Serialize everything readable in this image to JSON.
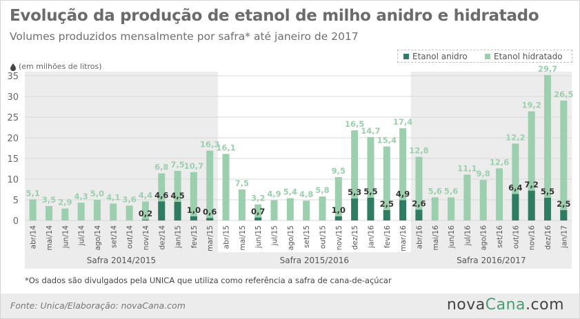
{
  "title": "Evolução da produção de etanol de milho anidro e hidratado",
  "subtitle": "Volumes produzidos mensalmente por safra* até janeiro de 2017",
  "unit_note": "(em milhões de litros)",
  "footnote": "*Os dados são divulgados pela UNICA que utiliza como referência a safra de cana-de-açúcar",
  "source": "Fonte:  Unica/Elaboração: novaCana.com",
  "brand": {
    "nova": "nova",
    "cana": "Cana",
    "com": ".com"
  },
  "icons": {
    "unit": "drop-icon"
  },
  "colors": {
    "anidro": "#2e7d62",
    "hidratado": "#9ccfad",
    "band": "#ececec",
    "grid": "#d9d9d9",
    "label_dark": "#333333",
    "label_light": "#ffffff",
    "value_light": "#9ccfad"
  },
  "legend": [
    {
      "name": "Etanol anidro",
      "color": "#2e7d62"
    },
    {
      "name": "Etanol hidratado",
      "color": "#9ccfad"
    }
  ],
  "chart_data": {
    "type": "bar",
    "stacked": true,
    "title": "Evolução da produção de etanol de milho anidro e hidratado",
    "ylabel": "(em milhões de litros)",
    "ylim": [
      0,
      35
    ],
    "yticks": [
      0,
      5,
      10,
      15,
      20,
      25,
      30,
      35
    ],
    "grid": true,
    "legend_position": "top-right",
    "categories": [
      "abr/14",
      "mai/14",
      "jun/14",
      "jul/14",
      "ago/14",
      "set/14",
      "out/14",
      "nov/14",
      "dez/14",
      "jan/15",
      "fev/15",
      "mar/15",
      "abr/15",
      "mai/15",
      "jun/15",
      "jul/15",
      "ago/15",
      "set/15",
      "out/15",
      "nov/15",
      "dez/15",
      "jan/16",
      "fev/16",
      "mar/16",
      "abr/16",
      "mai/16",
      "jun/16",
      "jul/16",
      "ago/16",
      "set/16",
      "out/16",
      "nov/16",
      "dez/16",
      "jan/17"
    ],
    "series": [
      {
        "name": "Etanol anidro",
        "color": "#2e7d62",
        "values": [
          0,
          0,
          0,
          0,
          0,
          0,
          0,
          0.2,
          4.6,
          4.5,
          1.0,
          0.6,
          0,
          0,
          0.7,
          0,
          0,
          0,
          0,
          1.0,
          5.3,
          5.5,
          2.5,
          4.9,
          2.6,
          0,
          0,
          0,
          0,
          0,
          6.4,
          7.2,
          5.5,
          2.5
        ],
        "labels": [
          "",
          "",
          "",
          "",
          "",
          "",
          "",
          "0,2",
          "4,6",
          "4,5",
          "1,0",
          "0,6",
          "",
          "",
          "0,7",
          "",
          "",
          "",
          "",
          "1,0",
          "5,3",
          "5,5",
          "2,5",
          "4,9",
          "2,6",
          "",
          "",
          "",
          "",
          "",
          "6,4",
          "7,2",
          "5,5",
          "2,5"
        ]
      },
      {
        "name": "Etanol hidratado",
        "color": "#9ccfad",
        "values": [
          5.1,
          3.5,
          2.9,
          4.3,
          5.0,
          4.1,
          3.6,
          4.4,
          6.8,
          7.5,
          10.7,
          16.3,
          16.1,
          7.5,
          3.2,
          4.9,
          5.4,
          4.8,
          5.8,
          9.5,
          16.5,
          14.7,
          15.4,
          17.4,
          12.8,
          5.6,
          5.6,
          11.1,
          9.8,
          12.6,
          12.2,
          19.2,
          29.7,
          26.5
        ],
        "labels": [
          "5,1",
          "3,5",
          "2,9",
          "4,3",
          "5,0",
          "4,1",
          "3,6",
          "4,4",
          "6,8",
          "7,5",
          "10,7",
          "16,3",
          "16,1",
          "7,5",
          "3,2",
          "4,9",
          "5,4",
          "4,8",
          "5,8",
          "9,5",
          "16,5",
          "14,7",
          "15,4",
          "17,4",
          "12,8",
          "5,6",
          "5,6",
          "11,1",
          "9,8",
          "12,6",
          "12,2",
          "19,2",
          "29,7",
          "26,5"
        ]
      }
    ],
    "safras": [
      {
        "label": "Safra 2014/2015",
        "start": 0,
        "end": 11,
        "shaded": true
      },
      {
        "label": "Safra 2015/2016",
        "start": 12,
        "end": 23,
        "shaded": false
      },
      {
        "label": "Safra 2016/2017",
        "start": 24,
        "end": 33,
        "shaded": true
      }
    ]
  }
}
